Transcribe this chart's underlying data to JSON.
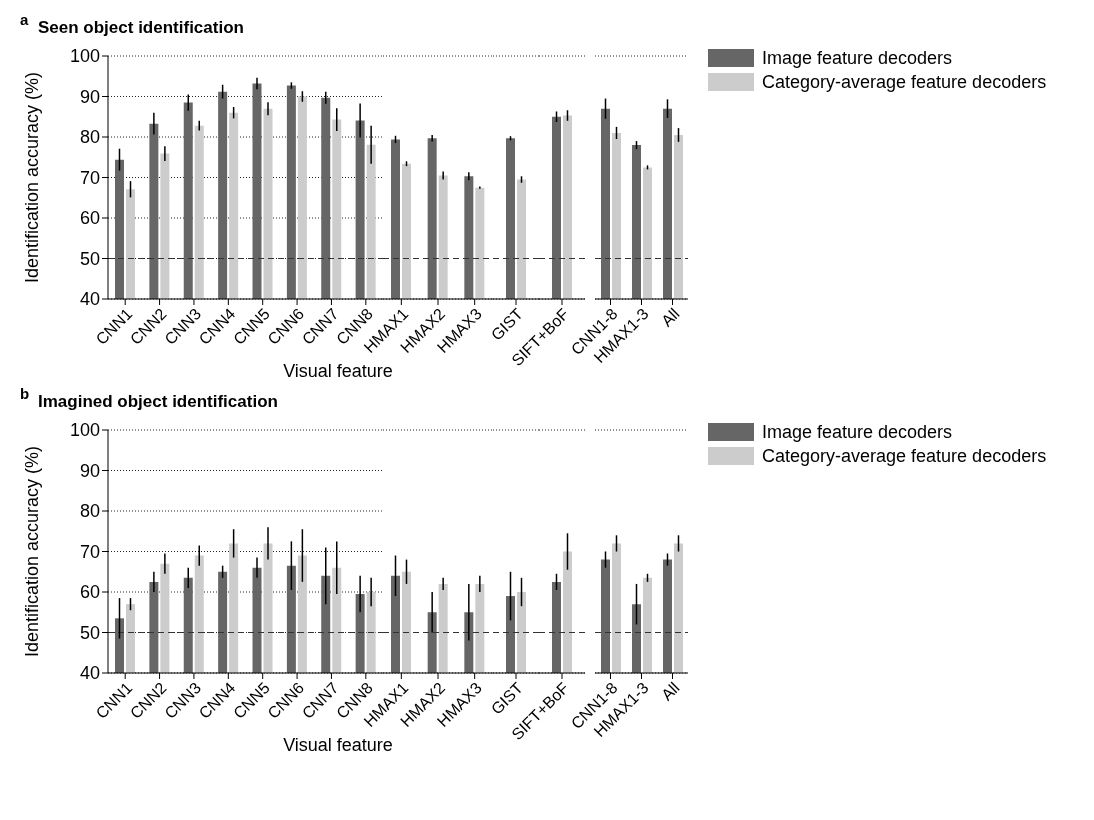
{
  "chart_data": [
    {
      "type": "bar",
      "title": "Seen object identification",
      "annotations": [
        "a"
      ],
      "ylabel": "Identification accuracy (%)",
      "xlabel": "Visual feature",
      "categories": [
        "CNN1",
        "CNN2",
        "CNN3",
        "CNN4",
        "CNN5",
        "CNN6",
        "CNN7",
        "CNN8"
      ],
      "series": [
        {
          "color": "#666666",
          "values": [
            74.4,
            83.3,
            88.5,
            91.2,
            93.2,
            92.7,
            89.7,
            84.1
          ],
          "errors": [
            2.7,
            2.7,
            2,
            1.7,
            1.4,
            0.8,
            1.5,
            4.2
          ]
        },
        {
          "color": "#cccccc",
          "values": [
            67.1,
            75.9,
            82.8,
            86.0,
            87.0,
            90.0,
            84.3,
            78.1
          ],
          "errors": [
            2,
            1.8,
            1.2,
            1.4,
            1.6,
            1.3,
            2.8,
            4.7
          ]
        }
      ],
      "ylim": [
        40,
        100
      ],
      "yticks": [
        40,
        50,
        60,
        70,
        80,
        90,
        100
      ],
      "grid": "y",
      "ref_lines": [
        {
          "axis": "y",
          "value": 50,
          "line_style": "dashed"
        }
      ]
    },
    {
      "type": "bar",
      "categories": [
        "HMAX1",
        "HMAX2",
        "HMAX3"
      ],
      "series": [
        {
          "color": "#666666",
          "values": [
            79.4,
            79.7,
            70.3
          ],
          "errors": [
            0.9,
            0.8,
            1
          ]
        },
        {
          "color": "#cccccc",
          "values": [
            73.4,
            70.5,
            67.5
          ],
          "errors": [
            0.6,
            1,
            0.3
          ]
        }
      ],
      "ylim": [
        40,
        100
      ],
      "yticks": [
        40,
        50,
        60,
        70,
        80,
        90,
        100
      ],
      "grid": "y",
      "tick_labels": "x",
      "ref_lines": [
        {
          "axis": "y",
          "value": 50,
          "line_style": "dashed"
        }
      ]
    },
    {
      "type": "bar",
      "categories": [
        "GIST"
      ],
      "series": [
        {
          "color": "#666666",
          "values": [
            79.7
          ],
          "errors": [
            0.5
          ]
        },
        {
          "color": "#cccccc",
          "values": [
            69.5
          ],
          "errors": [
            0.8
          ]
        }
      ],
      "ylim": [
        40,
        100
      ],
      "yticks": [
        40,
        50,
        60,
        70,
        80,
        90,
        100
      ],
      "grid": "y",
      "tick_labels": "x",
      "ref_lines": [
        {
          "axis": "y",
          "value": 50,
          "line_style": "dashed"
        }
      ]
    },
    {
      "type": "bar",
      "categories": [
        "SIFT+BoF"
      ],
      "series": [
        {
          "color": "#666666",
          "values": [
            85.0
          ],
          "errors": [
            1.3
          ]
        },
        {
          "color": "#cccccc",
          "values": [
            85.3
          ],
          "errors": [
            1.3
          ]
        }
      ],
      "ylim": [
        40,
        100
      ],
      "yticks": [
        40,
        50,
        60,
        70,
        80,
        90,
        100
      ],
      "grid": "y",
      "tick_labels": "x",
      "ref_lines": [
        {
          "axis": "y",
          "value": 50,
          "line_style": "dashed"
        }
      ]
    },
    {
      "type": "bar",
      "categories": [
        "CNN1-8",
        "HMAX1-3",
        "All"
      ],
      "series": [
        {
          "name": "Image feature decoders",
          "color": "#666666",
          "values": [
            87,
            78,
            87
          ],
          "errors": [
            2.5,
            1,
            2.3
          ]
        },
        {
          "name": "Category-average feature decoders",
          "color": "#cccccc",
          "values": [
            81,
            72.5,
            80.5
          ],
          "errors": [
            1.5,
            0.5,
            1.7
          ]
        }
      ],
      "ylim": [
        40,
        100
      ],
      "yticks": [
        40,
        50,
        60,
        70,
        80,
        90,
        100
      ],
      "grid": "y",
      "tick_labels": "x",
      "legend": "right",
      "ref_lines": [
        {
          "axis": "y",
          "value": 50,
          "line_style": "dashed"
        }
      ]
    },
    {
      "type": "bar",
      "title": "Imagined object identification",
      "annotations": [
        "b"
      ],
      "ylabel": "Identification accuracy (%)",
      "xlabel": "Visual feature",
      "categories": [
        "CNN1",
        "CNN2",
        "CNN3",
        "CNN4",
        "CNN5",
        "CNN6",
        "CNN7",
        "CNN8"
      ],
      "series": [
        {
          "color": "#666666",
          "values": [
            53.5,
            62.5,
            63.5,
            65,
            66,
            66.5,
            64,
            59.5
          ],
          "errors": [
            5,
            2.5,
            2.5,
            1.5,
            2.5,
            6,
            7,
            4.5
          ]
        },
        {
          "color": "#cccccc",
          "values": [
            57,
            67,
            69,
            72,
            72,
            69,
            66,
            60
          ],
          "errors": [
            1.5,
            2.5,
            2.5,
            3.5,
            4,
            6.5,
            6.5,
            3.5
          ]
        }
      ],
      "ylim": [
        40,
        100
      ],
      "yticks": [
        40,
        50,
        60,
        70,
        80,
        90,
        100
      ],
      "grid": "y",
      "ref_lines": [
        {
          "axis": "y",
          "value": 50,
          "line_style": "dashed"
        }
      ]
    },
    {
      "type": "bar",
      "categories": [
        "HMAX1",
        "HMAX2",
        "HMAX3"
      ],
      "series": [
        {
          "color": "#666666",
          "values": [
            64,
            55,
            55
          ],
          "errors": [
            5,
            5,
            7
          ]
        },
        {
          "color": "#cccccc",
          "values": [
            65,
            62,
            62
          ],
          "errors": [
            3,
            1.5,
            2
          ]
        }
      ],
      "ylim": [
        40,
        100
      ],
      "yticks": [
        40,
        50,
        60,
        70,
        80,
        90,
        100
      ],
      "grid": "y",
      "tick_labels": "x",
      "ref_lines": [
        {
          "axis": "y",
          "value": 50,
          "line_style": "dashed"
        }
      ]
    },
    {
      "type": "bar",
      "categories": [
        "GIST"
      ],
      "series": [
        {
          "color": "#666666",
          "values": [
            59
          ],
          "errors": [
            6
          ]
        },
        {
          "color": "#cccccc",
          "values": [
            60
          ],
          "errors": [
            3.5
          ]
        }
      ],
      "ylim": [
        40,
        100
      ],
      "yticks": [
        40,
        50,
        60,
        70,
        80,
        90,
        100
      ],
      "grid": "y",
      "tick_labels": "x",
      "ref_lines": [
        {
          "axis": "y",
          "value": 50,
          "line_style": "dashed"
        }
      ]
    },
    {
      "type": "bar",
      "categories": [
        "SIFT+BoF"
      ],
      "series": [
        {
          "color": "#666666",
          "values": [
            62.5
          ],
          "errors": [
            2
          ]
        },
        {
          "color": "#cccccc",
          "values": [
            70
          ],
          "errors": [
            4.5
          ]
        }
      ],
      "ylim": [
        40,
        100
      ],
      "yticks": [
        40,
        50,
        60,
        70,
        80,
        90,
        100
      ],
      "grid": "y",
      "tick_labels": "x",
      "ref_lines": [
        {
          "axis": "y",
          "value": 50,
          "line_style": "dashed"
        }
      ]
    },
    {
      "type": "bar",
      "categories": [
        "CNN1-8",
        "HMAX1-3",
        "All"
      ],
      "series": [
        {
          "name": "Image feature decoders",
          "color": "#666666",
          "values": [
            68,
            57,
            68
          ],
          "errors": [
            2,
            5,
            1.5
          ]
        },
        {
          "name": "Category-average feature decoders",
          "color": "#cccccc",
          "values": [
            72,
            63.5,
            72
          ],
          "errors": [
            2,
            1,
            2
          ]
        }
      ],
      "ylim": [
        40,
        100
      ],
      "yticks": [
        40,
        50,
        60,
        70,
        80,
        90,
        100
      ],
      "grid": "y",
      "tick_labels": "x",
      "legend": "right",
      "ref_lines": [
        {
          "axis": "y",
          "value": 50,
          "line_style": "dashed"
        }
      ]
    }
  ]
}
